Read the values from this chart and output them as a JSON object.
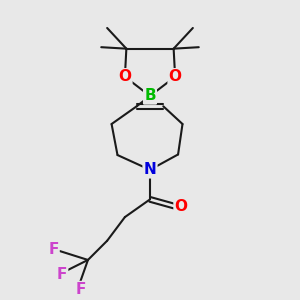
{
  "bg_color": "#e8e8e8",
  "bond_color": "#1a1a1a",
  "bond_width": 1.5,
  "atom_colors": {
    "O": "#ff0000",
    "B": "#00bb00",
    "N": "#0000dd",
    "F": "#cc44cc"
  },
  "figsize": [
    3.0,
    3.0
  ],
  "dpi": 100
}
